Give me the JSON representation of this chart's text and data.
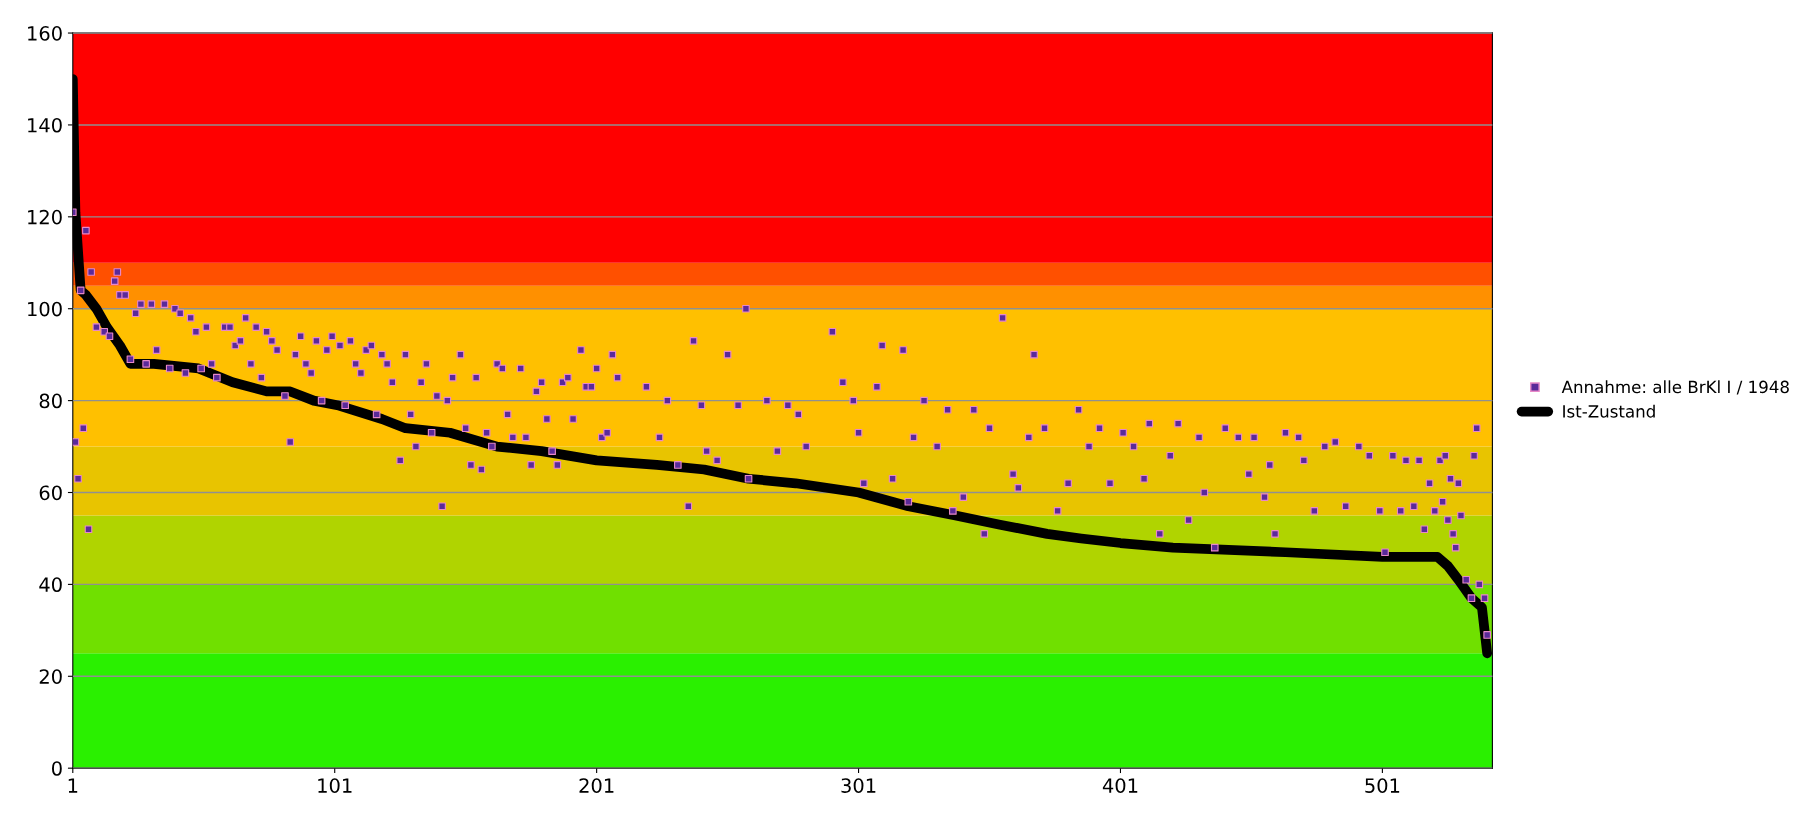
{
  "chart_data": {
    "type": "scatter",
    "xlim": [
      1,
      543
    ],
    "xticks": [
      1,
      101,
      201,
      301,
      401,
      501
    ],
    "ylim": [
      0,
      160
    ],
    "yticks": [
      0,
      20,
      40,
      60,
      80,
      100,
      120,
      140,
      160
    ],
    "grid": "y",
    "legend": "right",
    "bands": [
      {
        "axis": "y",
        "from": 0,
        "to": 25,
        "color": "#2af000"
      },
      {
        "axis": "y",
        "from": 25,
        "to": 40,
        "color": "#70e000"
      },
      {
        "axis": "y",
        "from": 40,
        "to": 55,
        "color": "#b0d400"
      },
      {
        "axis": "y",
        "from": 55,
        "to": 70,
        "color": "#e8c400"
      },
      {
        "axis": "y",
        "from": 70,
        "to": 100,
        "color": "#ffc000"
      },
      {
        "axis": "y",
        "from": 100,
        "to": 105,
        "color": "#ff9000"
      },
      {
        "axis": "y",
        "from": 105,
        "to": 110,
        "color": "#ff5000"
      },
      {
        "axis": "y",
        "from": 110,
        "to": 160,
        "color": "#ff0000"
      }
    ],
    "series": [
      {
        "name": "Annahme: alle BrKl I / 1948",
        "marker": "square",
        "color": "#5a2a9a",
        "x": [
          1,
          2,
          3,
          4,
          5,
          6,
          7,
          8,
          10,
          13,
          15,
          17,
          18,
          19,
          21,
          23,
          25,
          27,
          29,
          31,
          33,
          36,
          38,
          40,
          42,
          44,
          46,
          48,
          50,
          52,
          54,
          56,
          59,
          61,
          63,
          65,
          67,
          69,
          71,
          73,
          75,
          77,
          79,
          82,
          84,
          86,
          88,
          90,
          92,
          94,
          96,
          98,
          100,
          103,
          105,
          107,
          109,
          111,
          113,
          115,
          117,
          119,
          121,
          123,
          126,
          128,
          130,
          132,
          134,
          136,
          138,
          140,
          142,
          144,
          146,
          149,
          151,
          153,
          155,
          157,
          159,
          161,
          163,
          165,
          167,
          169,
          172,
          174,
          176,
          178,
          180,
          182,
          184,
          186,
          188,
          190,
          192,
          195,
          197,
          199,
          201,
          203,
          205,
          207,
          209,
          220,
          225,
          228,
          232,
          236,
          238,
          241,
          243,
          247,
          251,
          255,
          259,
          258,
          266,
          270,
          274,
          278,
          281,
          291,
          295,
          299,
          301,
          303,
          308,
          310,
          314,
          318,
          320,
          322,
          326,
          331,
          335,
          337,
          341,
          345,
          349,
          351,
          362,
          356,
          360,
          366,
          368,
          372,
          377,
          381,
          385,
          389,
          393,
          397,
          402,
          406,
          410,
          412,
          416,
          420,
          423,
          427,
          431,
          433,
          437,
          441,
          446,
          450,
          452,
          456,
          458,
          460,
          464,
          469,
          471,
          475,
          479,
          483,
          487,
          492,
          496,
          500,
          502,
          505,
          508,
          510,
          513,
          515,
          517,
          519,
          521,
          523,
          524,
          525,
          526,
          527,
          528,
          529,
          530,
          531,
          533,
          535,
          536,
          537,
          538,
          540,
          541
        ],
        "values": [
          121,
          71,
          63,
          104,
          74,
          117,
          52,
          108,
          96,
          95,
          94,
          106,
          108,
          103,
          103,
          89,
          99,
          101,
          88,
          101,
          91,
          101,
          87,
          100,
          99,
          86,
          98,
          95,
          87,
          96,
          88,
          85,
          96,
          96,
          92,
          93,
          98,
          88,
          96,
          85,
          95,
          93,
          91,
          81,
          71,
          90,
          94,
          88,
          86,
          93,
          80,
          91,
          94,
          92,
          79,
          93,
          88,
          86,
          91,
          92,
          77,
          90,
          88,
          84,
          67,
          90,
          77,
          70,
          84,
          88,
          73,
          81,
          57,
          80,
          85,
          90,
          74,
          66,
          85,
          65,
          73,
          70,
          88,
          87,
          77,
          72,
          87,
          72,
          66,
          82,
          84,
          76,
          69,
          66,
          84,
          85,
          76,
          91,
          83,
          83,
          87,
          72,
          73,
          90,
          85,
          83,
          72,
          80,
          66,
          57,
          93,
          79,
          69,
          67,
          90,
          79,
          63,
          100,
          80,
          69,
          79,
          77,
          70,
          95,
          84,
          80,
          73,
          62,
          83,
          92,
          63,
          91,
          58,
          72,
          80,
          70,
          78,
          56,
          59,
          78,
          51,
          74,
          61,
          98,
          64,
          72,
          90,
          74,
          56,
          62,
          78,
          70,
          74,
          62,
          73,
          70,
          63,
          75,
          51,
          68,
          75,
          54,
          72,
          60,
          48,
          74,
          72,
          64,
          72,
          59,
          66,
          51,
          73,
          72,
          67,
          56,
          70,
          71,
          57,
          70,
          68,
          56,
          47,
          68,
          56,
          67,
          57,
          67,
          52,
          62,
          56,
          67,
          58,
          68,
          54,
          63,
          51,
          48,
          62,
          55,
          41,
          37,
          68,
          74,
          40,
          37,
          29
        ]
      },
      {
        "name": "Ist-Zustand",
        "type": "line",
        "marker": "none",
        "line_style": "solid",
        "color": "#000000",
        "x": [
          1,
          2,
          4,
          6,
          10,
          14,
          19,
          23,
          32,
          49,
          62,
          75,
          84,
          93,
          102,
          119,
          128,
          145,
          163,
          180,
          201,
          224,
          242,
          259,
          277,
          301,
          320,
          338,
          355,
          373,
          386,
          401,
          421,
          464,
          501,
          522,
          526,
          530,
          535,
          539,
          541
        ],
        "values": [
          150,
          121,
          104,
          103,
          100,
          96,
          92,
          88,
          88,
          87,
          84,
          82,
          82,
          80,
          79,
          76,
          74,
          73,
          70,
          69,
          67,
          66,
          65,
          63,
          62,
          60,
          57,
          55,
          53,
          51,
          50,
          49,
          48,
          47,
          46,
          46,
          44,
          41,
          37,
          35,
          25
        ]
      }
    ]
  }
}
